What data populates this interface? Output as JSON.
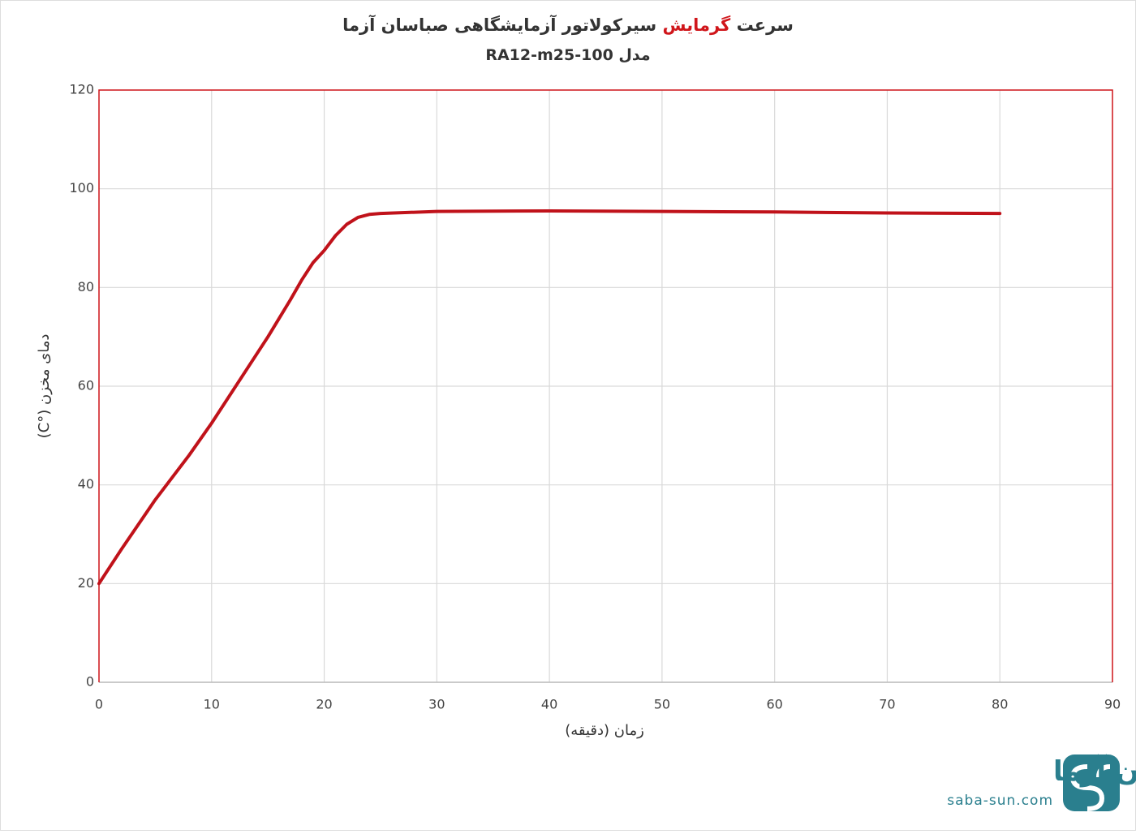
{
  "chart_data": {
    "type": "line",
    "title": [
      "سرعت",
      "گرمایش",
      "سیرکولاتور آزمایشگاهی صباسان آزما"
    ],
    "title_highlight_color": "#d0161b",
    "subtitle": "مدل RA12-m25-100",
    "x_label": "زمان (دقیقه)",
    "y_label": "دمای مخزن (°C)",
    "x": [
      0,
      2,
      5,
      8,
      10,
      13,
      15,
      17,
      18,
      19,
      20,
      21,
      22,
      23,
      24,
      25,
      30,
      40,
      50,
      60,
      70,
      80
    ],
    "series": [
      {
        "name": "دمای مخزن",
        "color": "#c0121a",
        "values": [
          20,
          27,
          37,
          46,
          52.5,
          63,
          70,
          77.5,
          81.5,
          85,
          87.5,
          90.5,
          92.8,
          94.2,
          94.8,
          95,
          95.4,
          95.5,
          95.4,
          95.3,
          95.1,
          95
        ]
      }
    ],
    "xlim": [
      0,
      90
    ],
    "xticks": [
      0,
      10,
      20,
      30,
      40,
      50,
      60,
      70,
      80,
      90
    ],
    "ylim": [
      0,
      120
    ],
    "yticks": [
      0,
      20,
      40,
      60,
      80,
      100,
      120
    ],
    "grid": true,
    "frame_color": "#d0161b",
    "logo": {
      "name": "صباسان آزما",
      "url": "saba-sun.com",
      "color": "#2a7f8e"
    }
  }
}
